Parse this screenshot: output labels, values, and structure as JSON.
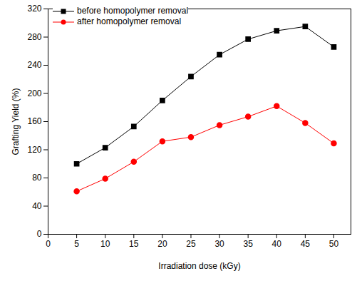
{
  "chart_data": {
    "type": "line",
    "x_label": "Irradiation dose (kGy)",
    "y_label": "Grafting Yield (%)",
    "x": [
      5,
      10,
      15,
      20,
      25,
      30,
      35,
      40,
      45,
      50
    ],
    "series": [
      {
        "name": "before homopolymer removal",
        "color": "#000000",
        "marker": "square",
        "line_style": "solid",
        "values": [
          100,
          123,
          153,
          190,
          224,
          255,
          277,
          289,
          295,
          266
        ]
      },
      {
        "name": "after homopolymer removal",
        "color": "#ff0000",
        "marker": "circle",
        "line_style": "solid",
        "values": [
          61,
          79,
          103,
          132,
          138,
          155,
          167,
          182,
          158,
          129
        ]
      }
    ],
    "xlim": [
      0,
      53
    ],
    "xticks": [
      0,
      5,
      10,
      15,
      20,
      25,
      30,
      35,
      40,
      45,
      50
    ],
    "ylim": [
      0,
      320
    ],
    "yticks": [
      0,
      40,
      80,
      120,
      160,
      200,
      240,
      280,
      320
    ],
    "grid": false,
    "legend": "top-left"
  }
}
